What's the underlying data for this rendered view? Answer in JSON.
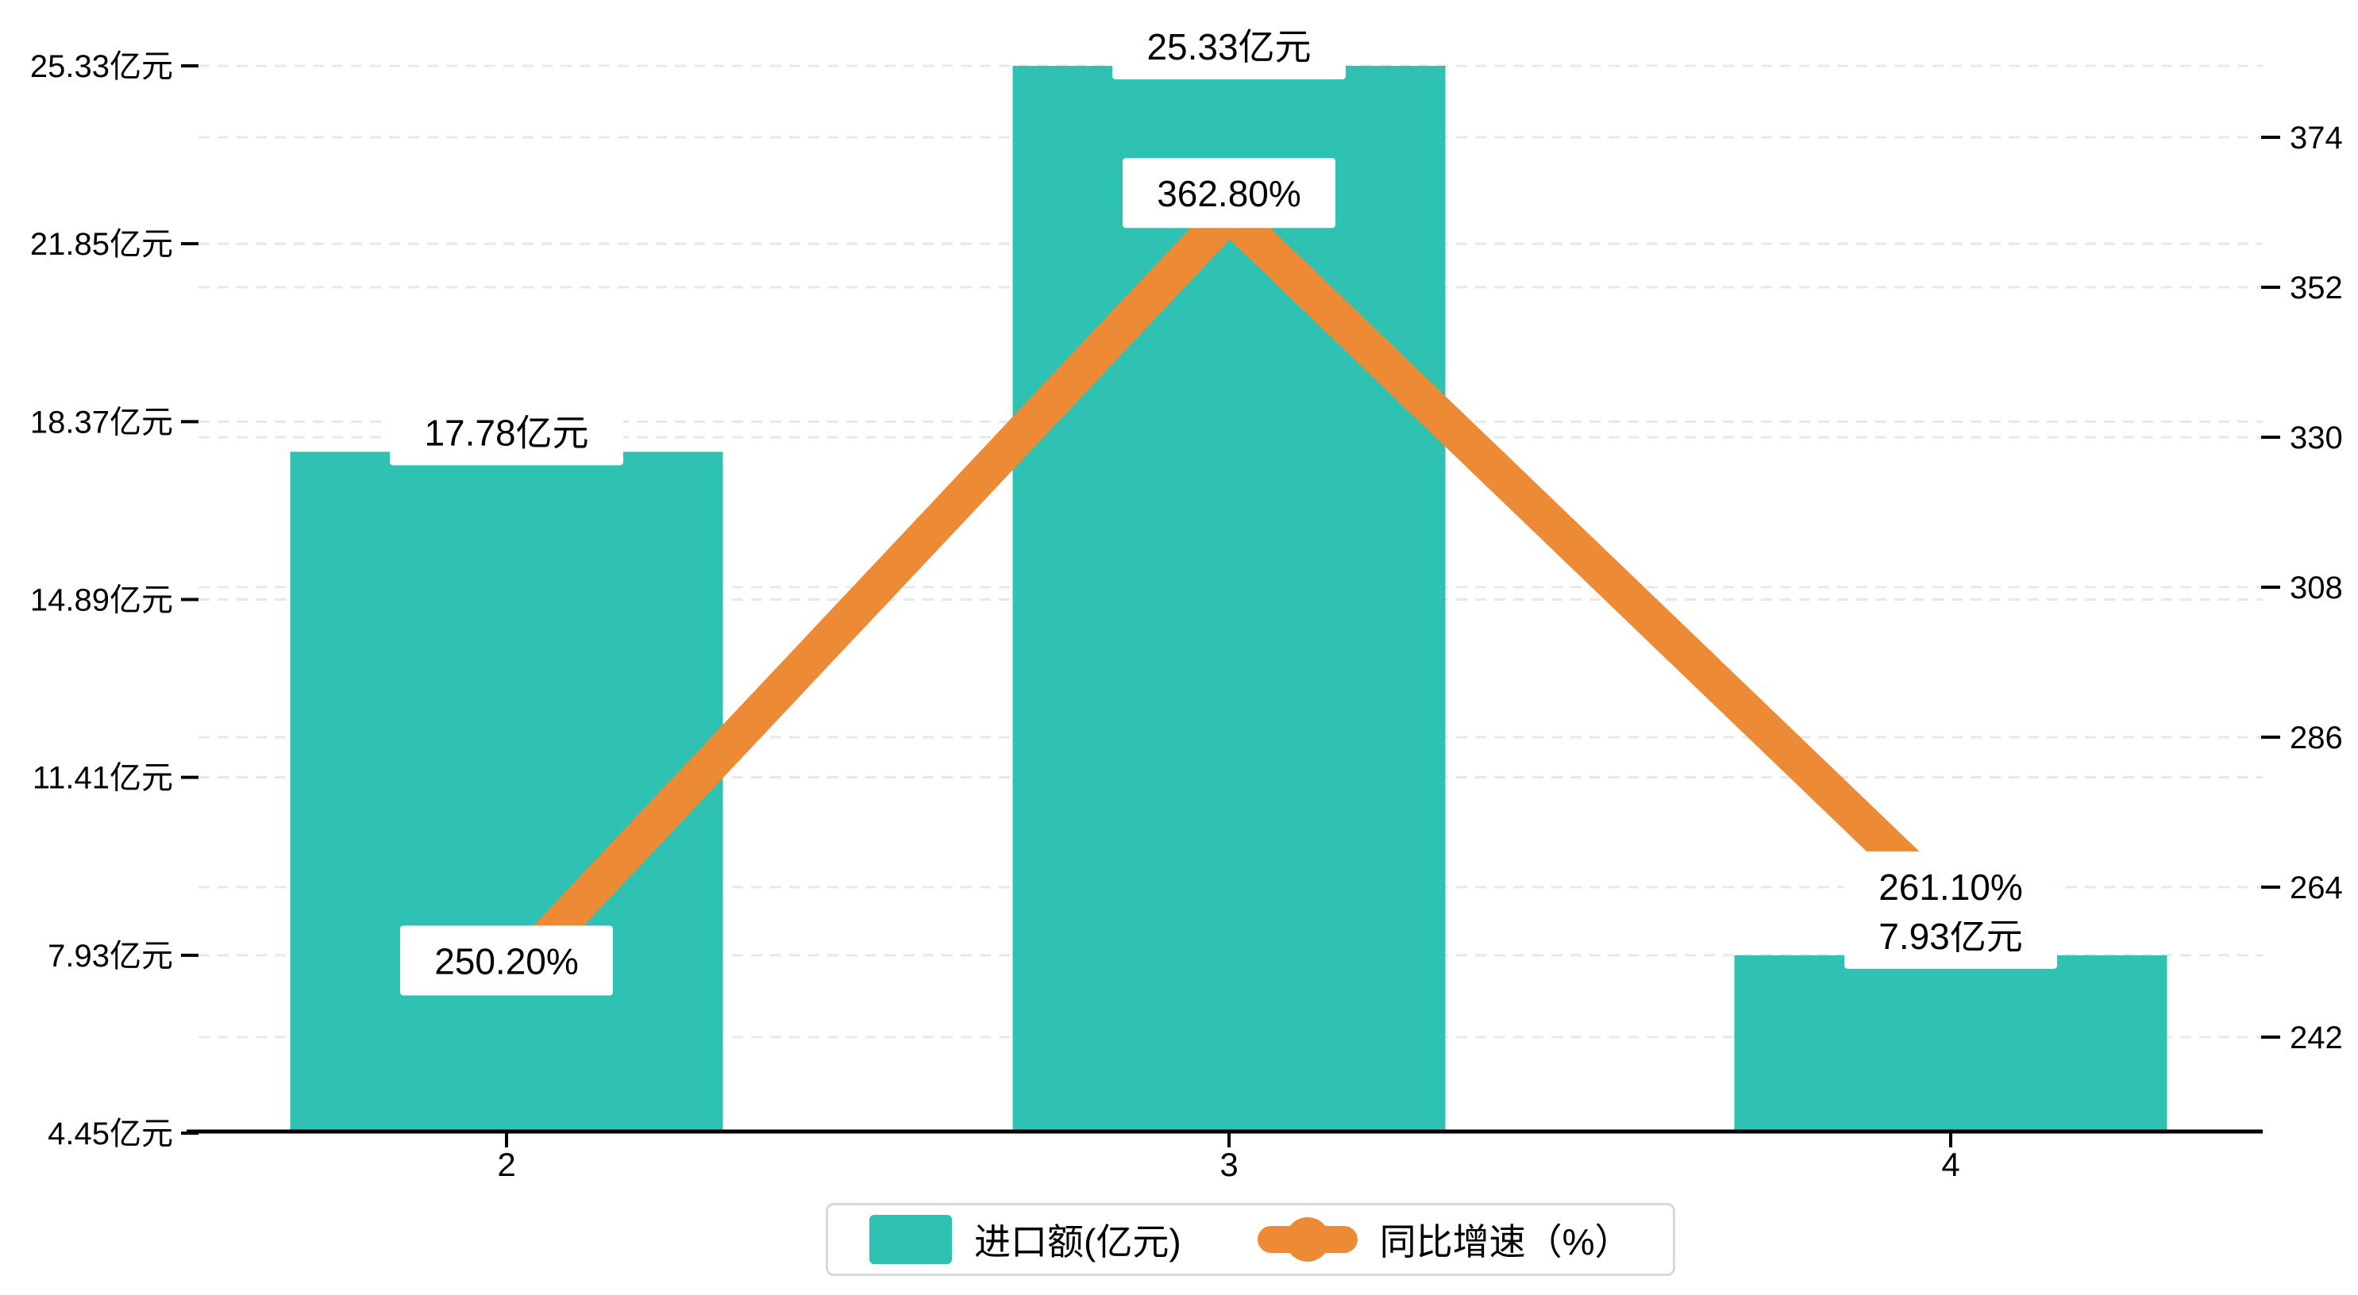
{
  "chart_data": {
    "type": "bar",
    "categories": [
      "2",
      "3",
      "4"
    ],
    "series": [
      {
        "name": "进口额(亿元)",
        "type": "bar",
        "axis": "left",
        "values": [
          17.78,
          25.33,
          7.93
        ],
        "labels": [
          "17.78亿元",
          "25.33亿元",
          "7.93亿元"
        ],
        "color": "#2FC2B2"
      },
      {
        "name": "同比增速（%）",
        "type": "line",
        "axis": "right",
        "values": [
          250.2,
          362.8,
          261.1
        ],
        "labels": [
          "250.20%",
          "362.80%",
          "261.10%"
        ],
        "color": "#ED8A36"
      }
    ],
    "left_axis": {
      "ticks": [
        {
          "label": "25.33亿元",
          "value": 25.33
        },
        {
          "label": "21.85亿元",
          "value": 21.85
        },
        {
          "label": "18.37亿元",
          "value": 18.37
        },
        {
          "label": "14.89亿元",
          "value": 14.89
        },
        {
          "label": "11.41亿元",
          "value": 11.41
        },
        {
          "label": "7.93亿元",
          "value": 7.93
        },
        {
          "label": "4.45亿元",
          "value": 4.45
        }
      ],
      "min": 4.45,
      "max": 25.33
    },
    "right_axis": {
      "ticks": [
        374,
        352,
        330,
        308,
        286,
        264,
        242
      ],
      "min": 242,
      "max": 374
    },
    "grid": true,
    "legend_position": "bottom",
    "xlabel": "",
    "ylabel_left": "亿元",
    "ylabel_right": "%"
  },
  "legend": {
    "items": [
      {
        "label": "进口额(亿元)",
        "color": "#2FC2B2",
        "marker": "rect"
      },
      {
        "label": "同比增速（%）",
        "color": "#ED8A36",
        "marker": "line-dot"
      }
    ]
  },
  "colors": {
    "bar": "#2FC2B2",
    "line": "#ED8A36",
    "gridline": "#E8E8E8",
    "axis": "#000000",
    "label_box": "#FFFFFF",
    "legend_border": "#D9D9D9"
  }
}
